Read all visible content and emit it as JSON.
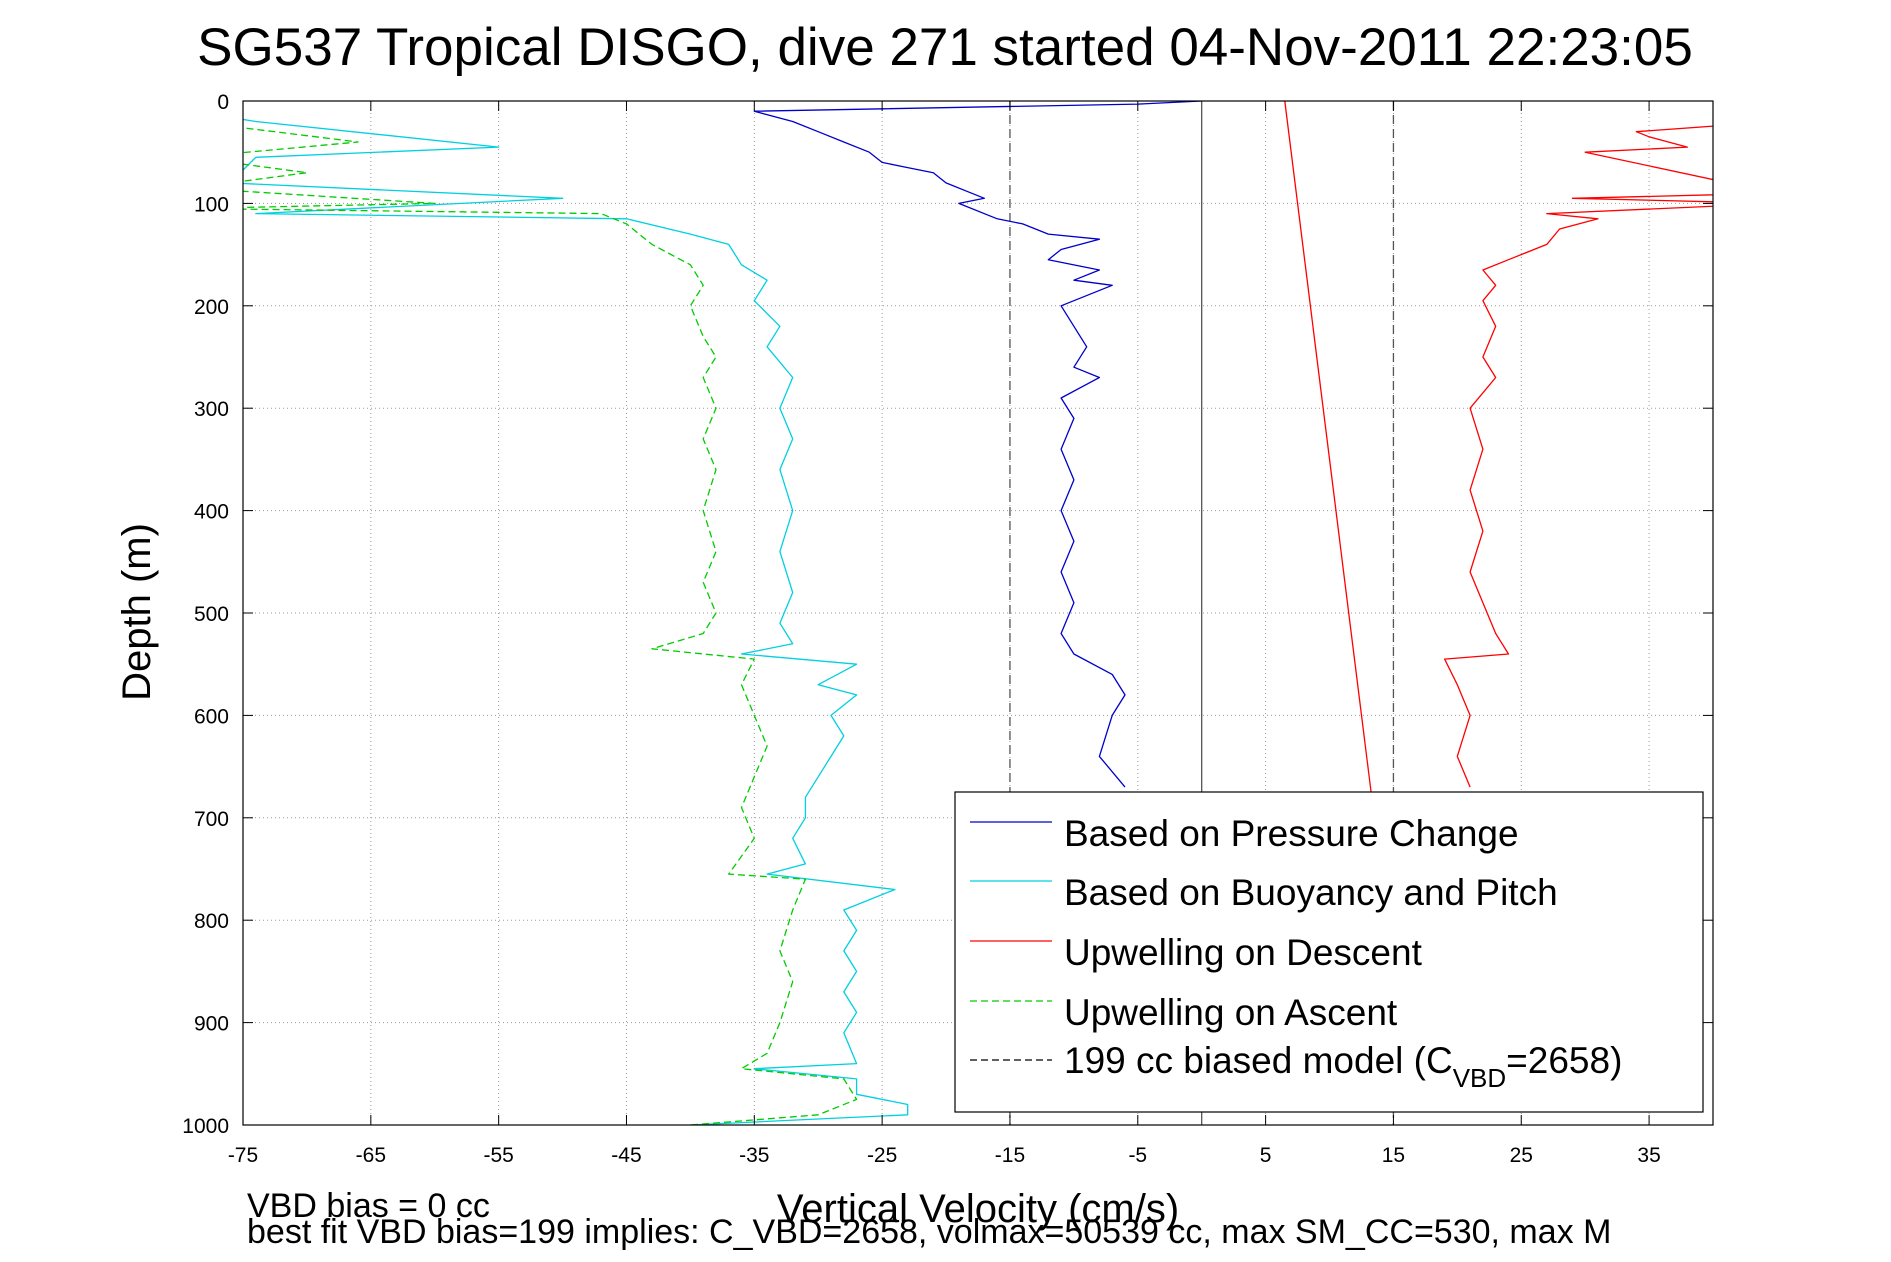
{
  "chart_data": {
    "type": "line",
    "title": "SG537 Tropical DISGO, dive 271 started 04-Nov-2011 22:23:05",
    "xlabel": "Vertical Velocity (cm/s)",
    "ylabel": "Depth (m)",
    "xlim": [
      -75,
      40
    ],
    "ylim": [
      0,
      1000
    ],
    "y_reversed": true,
    "grid": true,
    "x_ticks": [
      "-75",
      "-65",
      "-55",
      "-45",
      "-35",
      "-25",
      "-15",
      "-5",
      "5",
      "15",
      "25",
      "35"
    ],
    "y_ticks": [
      "0",
      "100",
      "200",
      "300",
      "400",
      "500",
      "600",
      "700",
      "800",
      "900",
      "1000"
    ],
    "legend_position": "bottom-right",
    "legend": {
      "entry1": "Based on Pressure Change",
      "entry2": "Based on Buoyancy and Pitch",
      "entry3": "Upwelling on Descent",
      "entry4": "Upwelling on Ascent",
      "entry5_main": "199 cc biased model (C",
      "entry5_sub": "VBD",
      "entry5_end": "=2658)"
    },
    "footer": {
      "line1": "VBD bias = 0 cc",
      "line2": "best fit VBD bias=199 implies: C_VBD=2658, volmax=50539 cc, max SM_CC=530, max M"
    },
    "reference_lines": [
      {
        "x": -15,
        "style": "dashed",
        "color": "#555555"
      },
      {
        "x": 15,
        "style": "dashed",
        "color": "#555555"
      },
      {
        "x": 0,
        "style": "solid",
        "color": "#555555"
      }
    ],
    "series": [
      {
        "color": "#0000cc",
        "style": "solid",
        "points": [
          [
            0,
            0
          ],
          [
            -5,
            3
          ],
          [
            -35,
            10
          ],
          [
            -32,
            20
          ],
          [
            -30,
            30
          ],
          [
            -28,
            40
          ],
          [
            -26,
            50
          ],
          [
            -25,
            60
          ],
          [
            -23,
            65
          ],
          [
            -21,
            70
          ],
          [
            -20,
            80
          ],
          [
            -18,
            90
          ],
          [
            -17,
            95
          ],
          [
            -19,
            100
          ],
          [
            -16,
            115
          ],
          [
            -14,
            120
          ],
          [
            -12,
            130
          ],
          [
            -8,
            135
          ],
          [
            -11,
            145
          ],
          [
            -12,
            155
          ],
          [
            -8,
            165
          ],
          [
            -10,
            175
          ],
          [
            -7,
            180
          ],
          [
            -11,
            200
          ],
          [
            -10,
            220
          ],
          [
            -9,
            240
          ],
          [
            -10,
            260
          ],
          [
            -8,
            270
          ],
          [
            -11,
            290
          ],
          [
            -10,
            310
          ],
          [
            -11,
            340
          ],
          [
            -10,
            370
          ],
          [
            -11,
            400
          ],
          [
            -10,
            430
          ],
          [
            -11,
            460
          ],
          [
            -10,
            490
          ],
          [
            -11,
            520
          ],
          [
            -10,
            540
          ],
          [
            -7,
            560
          ],
          [
            -6,
            580
          ],
          [
            -7,
            600
          ],
          [
            -8,
            640
          ],
          [
            -6,
            670
          ]
        ]
      },
      {
        "color": "#00d0e0",
        "style": "solid",
        "points": [
          [
            -79,
            10
          ],
          [
            -74,
            20
          ],
          [
            -55,
            45
          ],
          [
            -74,
            55
          ],
          [
            -76,
            80
          ],
          [
            -50,
            95
          ],
          [
            -74,
            110
          ],
          [
            -45,
            115
          ],
          [
            -40,
            130
          ],
          [
            -37,
            140
          ],
          [
            -36,
            160
          ],
          [
            -34,
            175
          ],
          [
            -35,
            195
          ],
          [
            -33,
            220
          ],
          [
            -34,
            240
          ],
          [
            -32,
            270
          ],
          [
            -33,
            300
          ],
          [
            -32,
            330
          ],
          [
            -33,
            360
          ],
          [
            -32,
            400
          ],
          [
            -33,
            440
          ],
          [
            -32,
            480
          ],
          [
            -33,
            510
          ],
          [
            -32,
            530
          ],
          [
            -36,
            540
          ],
          [
            -27,
            550
          ],
          [
            -30,
            570
          ],
          [
            -27,
            580
          ],
          [
            -29,
            600
          ],
          [
            -28,
            620
          ],
          [
            -29,
            640
          ],
          [
            -30,
            660
          ],
          [
            -31,
            680
          ],
          [
            -31,
            700
          ],
          [
            -32,
            720
          ],
          [
            -31,
            745
          ],
          [
            -34,
            755
          ],
          [
            -24,
            770
          ],
          [
            -28,
            790
          ],
          [
            -27,
            810
          ],
          [
            -28,
            830
          ],
          [
            -27,
            850
          ],
          [
            -28,
            870
          ],
          [
            -27,
            890
          ],
          [
            -28,
            910
          ],
          [
            -27,
            940
          ],
          [
            -35,
            945
          ],
          [
            -27,
            955
          ],
          [
            -27,
            970
          ],
          [
            -23,
            980
          ],
          [
            -23,
            990
          ],
          [
            -40,
            1000
          ]
        ]
      },
      {
        "color": "#ff0000",
        "style": "solid",
        "points": [
          [
            45,
            20
          ],
          [
            34,
            30
          ],
          [
            35,
            35
          ],
          [
            38,
            45
          ],
          [
            30,
            50
          ],
          [
            45,
            90
          ],
          [
            29,
            95
          ],
          [
            45,
            100
          ],
          [
            27,
            110
          ],
          [
            31,
            115
          ],
          [
            28,
            125
          ],
          [
            27,
            140
          ],
          [
            24,
            155
          ],
          [
            22,
            165
          ],
          [
            23,
            180
          ],
          [
            22,
            195
          ],
          [
            23,
            220
          ],
          [
            22,
            250
          ],
          [
            23,
            270
          ],
          [
            21,
            300
          ],
          [
            22,
            340
          ],
          [
            21,
            380
          ],
          [
            22,
            420
          ],
          [
            21,
            460
          ],
          [
            22,
            490
          ],
          [
            23,
            520
          ],
          [
            24,
            540
          ],
          [
            19,
            545
          ],
          [
            20,
            570
          ],
          [
            21,
            600
          ],
          [
            20,
            640
          ],
          [
            21,
            670
          ]
        ]
      },
      {
        "color": "#00cc00",
        "style": "dashed",
        "points": [
          [
            -79,
            20
          ],
          [
            -66,
            40
          ],
          [
            -79,
            55
          ],
          [
            -70,
            70
          ],
          [
            -79,
            85
          ],
          [
            -60,
            100
          ],
          [
            -79,
            105
          ],
          [
            -47,
            110
          ],
          [
            -45,
            120
          ],
          [
            -43,
            140
          ],
          [
            -40,
            160
          ],
          [
            -39,
            180
          ],
          [
            -40,
            200
          ],
          [
            -39,
            230
          ],
          [
            -38,
            250
          ],
          [
            -39,
            270
          ],
          [
            -38,
            300
          ],
          [
            -39,
            330
          ],
          [
            -38,
            360
          ],
          [
            -39,
            400
          ],
          [
            -38,
            440
          ],
          [
            -39,
            470
          ],
          [
            -38,
            500
          ],
          [
            -39,
            520
          ],
          [
            -43,
            535
          ],
          [
            -35,
            545
          ],
          [
            -36,
            570
          ],
          [
            -35,
            600
          ],
          [
            -34,
            630
          ],
          [
            -35,
            660
          ],
          [
            -36,
            690
          ],
          [
            -35,
            720
          ],
          [
            -37,
            755
          ],
          [
            -31,
            760
          ],
          [
            -32,
            790
          ],
          [
            -33,
            830
          ],
          [
            -32,
            860
          ],
          [
            -33,
            900
          ],
          [
            -34,
            930
          ],
          [
            -36,
            945
          ],
          [
            -28,
            955
          ],
          [
            -27,
            975
          ],
          [
            -30,
            990
          ],
          [
            -40,
            1000
          ]
        ]
      },
      {
        "color": "#ff0000",
        "style": "solid",
        "points": [
          [
            6.5,
            0
          ],
          [
            13.5,
            700
          ]
        ]
      }
    ]
  }
}
